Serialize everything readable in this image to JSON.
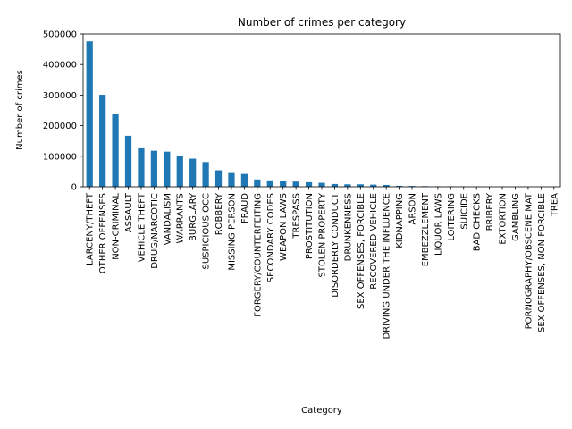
{
  "chart_data": {
    "type": "bar",
    "title": "Number of crimes per category",
    "xlabel": "Category",
    "ylabel": "Number of crimes",
    "ylim": [
      0,
      500000
    ],
    "yticks": [
      0,
      100000,
      200000,
      300000,
      400000,
      500000
    ],
    "ytick_labels": [
      "0",
      "100000",
      "200000",
      "300000",
      "400000",
      "500000"
    ],
    "grid": false,
    "legend": "none",
    "bar_color": "#1f77b4",
    "categories": [
      "LARCENY/THEFT",
      "OTHER OFFENSES",
      "NON-CRIMINAL",
      "ASSAULT",
      "VEHICLE THEFT",
      "DRUG/NARCOTIC",
      "VANDALISM",
      "WARRANTS",
      "BURGLARY",
      "SUSPICIOUS OCC",
      "ROBBERY",
      "MISSING PERSON",
      "FRAUD",
      "FORGERY/COUNTERFEITING",
      "SECONDARY CODES",
      "WEAPON LAWS",
      "TRESPASS",
      "PROSTITUTION",
      "STOLEN PROPERTY",
      "DISORDERLY CONDUCT",
      "DRUNKENNESS",
      "SEX OFFENSES, FORCIBLE",
      "RECOVERED VEHICLE",
      "DRIVING UNDER THE INFLUENCE",
      "KIDNAPPING",
      "ARSON",
      "EMBEZZLEMENT",
      "LIQUOR LAWS",
      "LOITERING",
      "SUICIDE",
      "BAD CHECKS",
      "BRIBERY",
      "EXTORTION",
      "GAMBLING",
      "PORNOGRAPHY/OBSCENE MAT",
      "SEX OFFENSES, NON FORCIBLE",
      "TREA"
    ],
    "values": [
      476000,
      301000,
      237000,
      167000,
      126000,
      118000,
      115000,
      100000,
      92000,
      81000,
      54000,
      45000,
      42000,
      24000,
      21000,
      20000,
      17000,
      15000,
      13000,
      9000,
      8000,
      8000,
      7000,
      6000,
      3000,
      2500,
      2000,
      1500,
      1200,
      1000,
      600,
      600,
      300,
      200,
      100,
      50,
      20
    ]
  }
}
